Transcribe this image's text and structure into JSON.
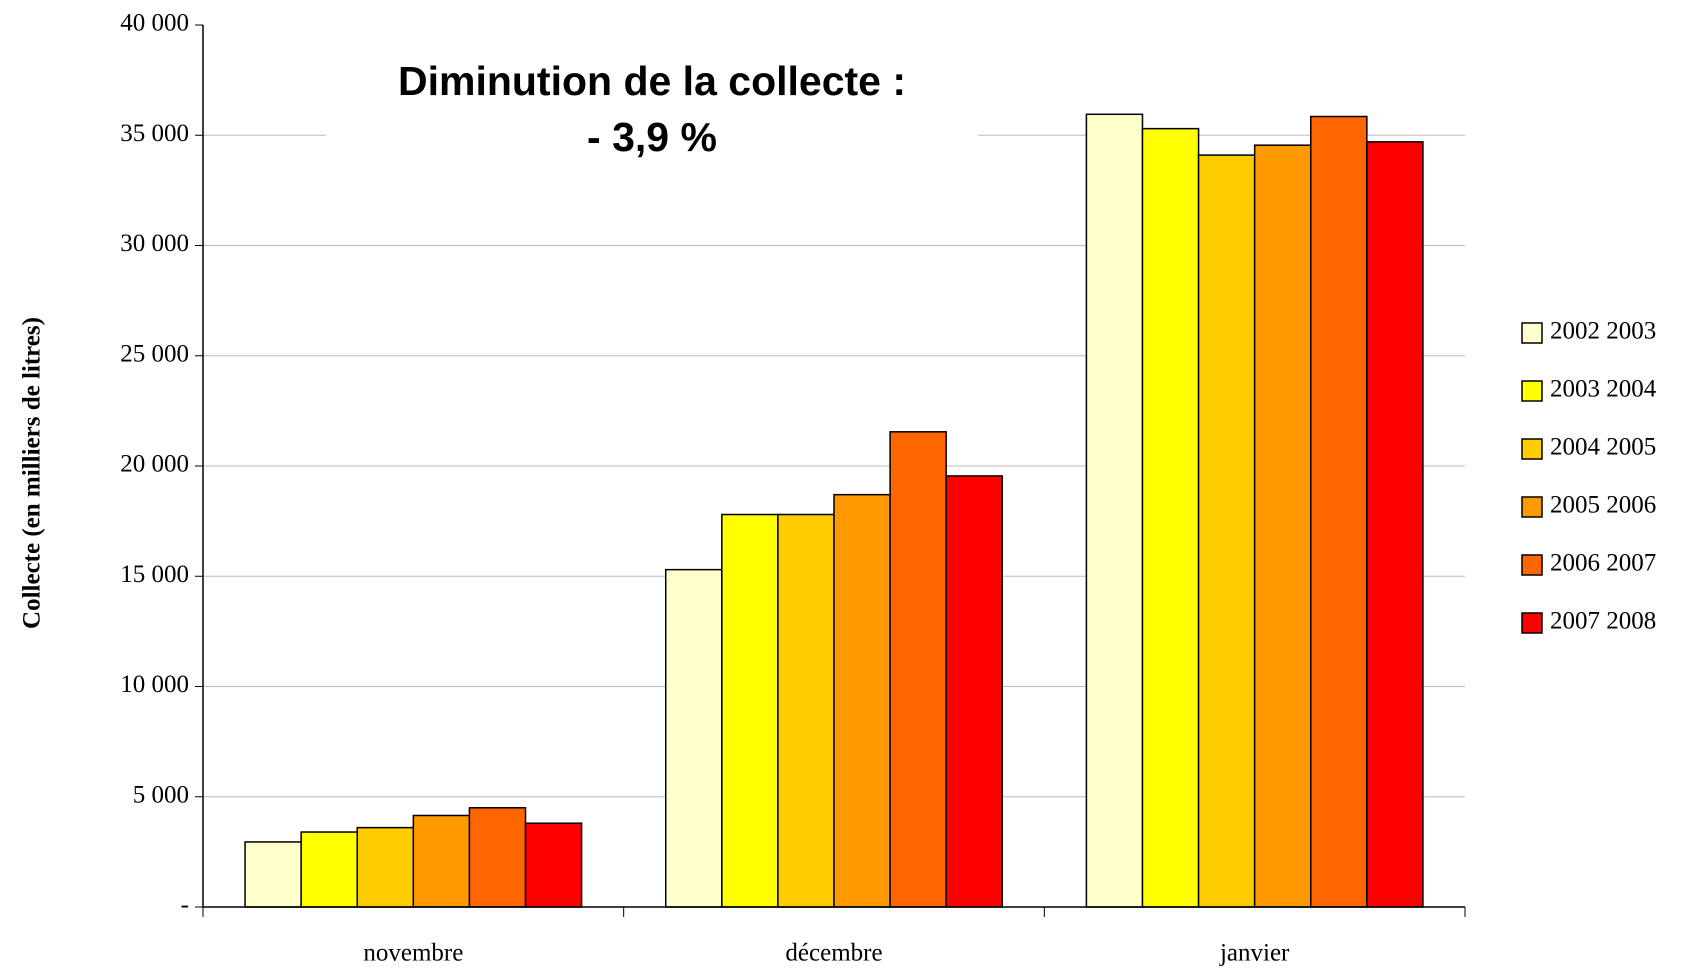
{
  "chart_data": {
    "type": "bar",
    "annotation": [
      "Diminution de la collecte :",
      "- 3,9 %"
    ],
    "y_label": "Collecte (en milliers de litres)",
    "categories": [
      "novembre",
      "décembre",
      "janvier"
    ],
    "series": [
      {
        "name": "2002 2003",
        "color": "#FFFFCC",
        "values": [
          2950,
          15300,
          35950
        ]
      },
      {
        "name": "2003 2004",
        "color": "#FFFF00",
        "values": [
          3400,
          17800,
          35300
        ]
      },
      {
        "name": "2004 2005",
        "color": "#FFCC00",
        "values": [
          3600,
          17800,
          34100
        ]
      },
      {
        "name": "2005 2006",
        "color": "#FF9900",
        "values": [
          4150,
          18700,
          34550
        ]
      },
      {
        "name": "2006 2007",
        "color": "#FF6600",
        "values": [
          4500,
          21550,
          35850
        ]
      },
      {
        "name": "2007 2008",
        "color": "#FF0000",
        "values": [
          3800,
          19550,
          34700
        ]
      }
    ],
    "ylim": [
      0,
      40000
    ],
    "yticks": [
      {
        "value": 0,
        "label": "-"
      },
      {
        "value": 5000,
        "label": "5 000"
      },
      {
        "value": 10000,
        "label": "10 000"
      },
      {
        "value": 15000,
        "label": "15 000"
      },
      {
        "value": 20000,
        "label": "20 000"
      },
      {
        "value": 25000,
        "label": "25 000"
      },
      {
        "value": 30000,
        "label": "30 000"
      },
      {
        "value": 35000,
        "label": "35 000"
      },
      {
        "value": 40000,
        "label": "40 000"
      }
    ],
    "grid": true,
    "legend": "right"
  }
}
